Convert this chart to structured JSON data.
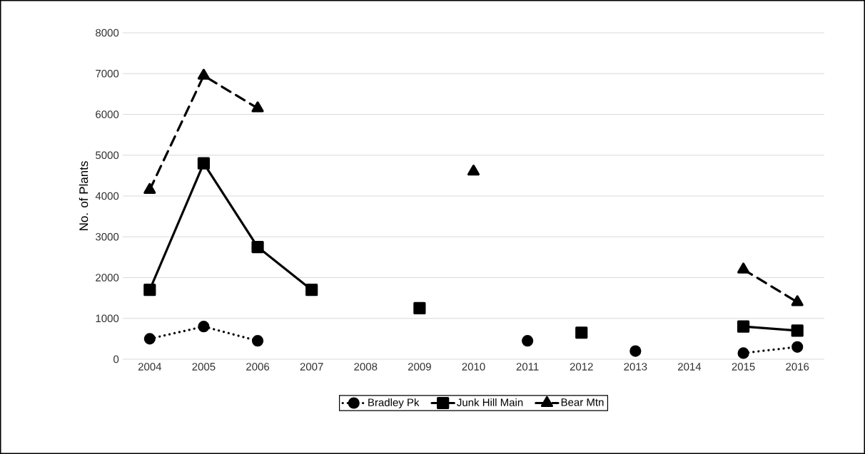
{
  "chart_data": {
    "type": "line",
    "ylabel": "No. of Plants",
    "categories": [
      "2004",
      "2005",
      "2006",
      "2007",
      "2008",
      "2009",
      "2010",
      "2011",
      "2012",
      "2013",
      "2014",
      "2015",
      "2016"
    ],
    "series": [
      {
        "name": "Bradley Pk",
        "color": "#000000",
        "marker": "circle",
        "line_style": "dotted",
        "values": [
          500,
          800,
          450,
          null,
          null,
          null,
          null,
          450,
          null,
          200,
          null,
          150,
          300
        ]
      },
      {
        "name": "Junk Hill Main",
        "color": "#000000",
        "marker": "square",
        "line_style": "solid",
        "values": [
          1700,
          4800,
          2750,
          1700,
          null,
          1250,
          null,
          null,
          650,
          null,
          null,
          800,
          700
        ]
      },
      {
        "name": "Bear Mtn",
        "color": "#000000",
        "marker": "triangle",
        "line_style": "dashed",
        "values": [
          4150,
          6950,
          6150,
          null,
          null,
          null,
          4600,
          null,
          null,
          null,
          null,
          2200,
          1400
        ]
      }
    ],
    "ylim": [
      0,
      8000
    ],
    "yticks": [
      0,
      1000,
      2000,
      3000,
      4000,
      5000,
      6000,
      7000,
      8000
    ],
    "grid": "y",
    "legend": "bottom"
  }
}
